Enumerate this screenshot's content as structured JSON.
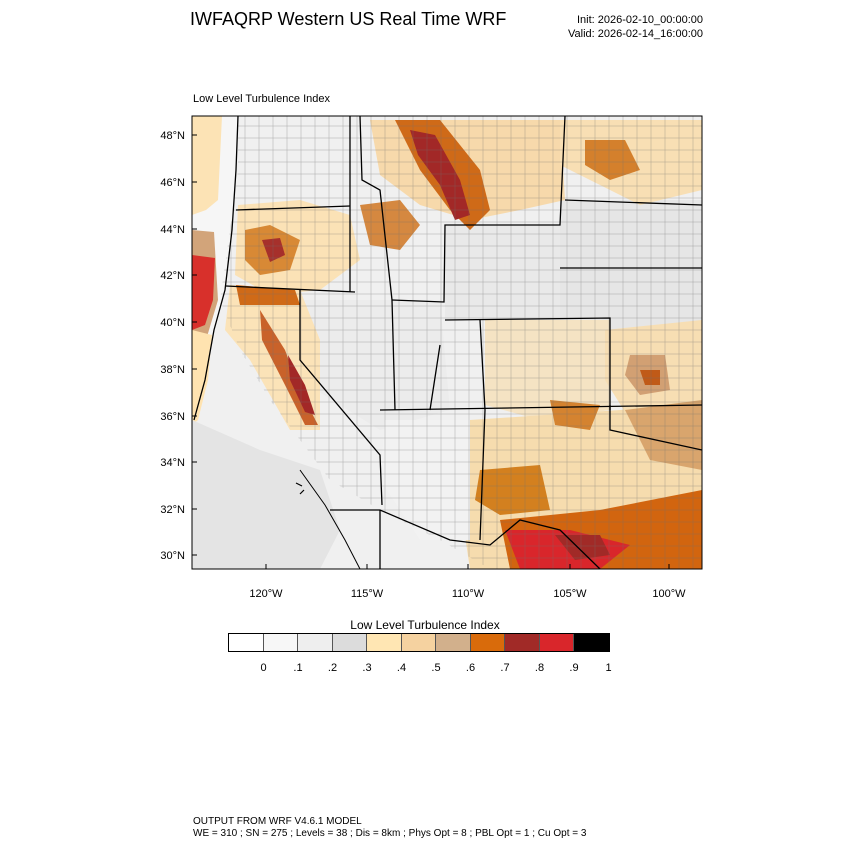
{
  "title": "IWFAQRP Western US Real Time WRF",
  "init": "Init: 2026-02-10_00:00:00",
  "valid": "Valid: 2026-02-14_16:00:00",
  "plot_title": "Low Level Turbulence Index",
  "map": {
    "lat_labels": [
      "48°N",
      "46°N",
      "44°N",
      "42°N",
      "40°N",
      "38°N",
      "36°N",
      "34°N",
      "32°N",
      "30°N"
    ],
    "lon_labels": [
      "120°W",
      "115°W",
      "110°W",
      "105°W",
      "100°W"
    ]
  },
  "colorbar": {
    "title": "Low Level Turbulence Index",
    "colors": [
      "#ffffff",
      "#f7f7f7",
      "#eeeeee",
      "#dcdcdc",
      "#ffe6b3",
      "#f5d2a0",
      "#d2b08c",
      "#d96b0b",
      "#a12a27",
      "#d9262b",
      "#000000"
    ],
    "labels": [
      "0",
      ".1",
      ".2",
      ".3",
      ".4",
      ".5",
      ".6",
      ".7",
      ".8",
      ".9",
      "1"
    ]
  },
  "footer": {
    "line1": "OUTPUT FROM WRF V4.6.1 MODEL",
    "line2": "WE = 310 ; SN = 275 ; Levels = 38 ; Dis = 8km ; Phys Opt = 8 ; PBL Opt = 1 ; Cu Opt = 3"
  }
}
